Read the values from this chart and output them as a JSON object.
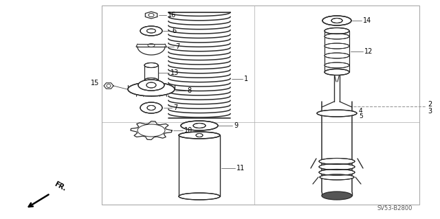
{
  "bg_color": "#ffffff",
  "border_color": "#999999",
  "line_color": "#2a2a2a",
  "label_color": "#000000",
  "footer_text": "SV53-B2800",
  "fig_w": 6.4,
  "fig_h": 3.19,
  "dpi": 100
}
